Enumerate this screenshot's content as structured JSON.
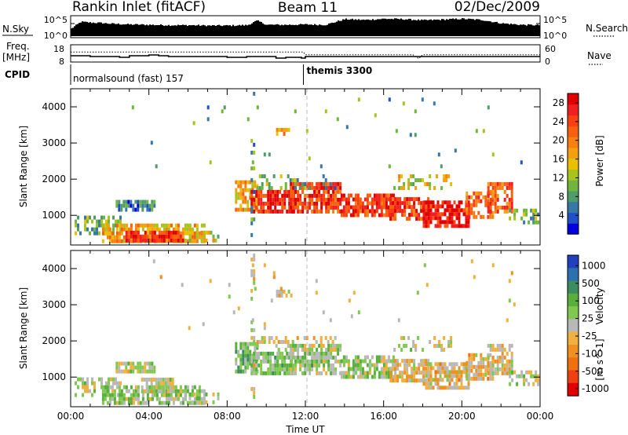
{
  "header": {
    "station": "Rankin Inlet (fitACF)",
    "beam": "Beam 11",
    "date": "02/Dec/2009"
  },
  "chart_data": [
    {
      "name": "noise-strip",
      "type": "line",
      "left_label": "N.Sky",
      "right_label": "N.Search",
      "left_ticks": [
        "10^5",
        "10^0"
      ],
      "right_ticks": [
        "10^5",
        "10^0"
      ],
      "series": [
        {
          "name": "N.Sky",
          "x_hours": [
            0,
            0.5,
            1.0,
            1.5,
            2.0,
            3.0,
            4.0,
            5.0,
            6.0,
            7.0,
            8.0,
            9.0,
            9.5,
            10.0,
            11.0,
            12.0,
            13.0,
            14.0,
            15.0,
            16.0,
            17.0,
            18.0,
            19.0,
            20.0,
            21.0,
            22.0,
            23.0,
            24.0
          ],
          "log10_noise": [
            2.0,
            3.8,
            3.6,
            3.5,
            3.3,
            3.1,
            3.0,
            2.9,
            2.9,
            2.8,
            2.8,
            2.9,
            4.1,
            3.0,
            3.0,
            3.1,
            3.0,
            4.5,
            4.3,
            4.6,
            4.5,
            4.2,
            4.4,
            4.6,
            4.3,
            3.4,
            3.0,
            2.9
          ]
        }
      ]
    },
    {
      "name": "frequency-strip",
      "type": "line",
      "left_label": "Freq.",
      "left_unit": "[MHz]",
      "right_label": "Nave",
      "left_ticks": [
        18,
        8
      ],
      "right_ticks": [
        60,
        0
      ],
      "series": [
        {
          "name": "Freq.",
          "x_hours": [
            0,
            1.0,
            1.5,
            2.5,
            3.0,
            4.0,
            4.5,
            5.0,
            8.0,
            9.0,
            10.0,
            10.5,
            11.0,
            11.8,
            12.0,
            18.0,
            24.0
          ],
          "mhz": [
            11.5,
            11.0,
            11.0,
            10.5,
            11.5,
            12.0,
            11.5,
            11.0,
            10.5,
            11.0,
            11.0,
            10.0,
            10.5,
            10.0,
            11.0,
            11.0,
            11.0
          ]
        },
        {
          "name": "Nave",
          "x_hours": [
            0,
            11.9,
            12.0,
            17.5,
            17.8,
            18.0,
            24.0
          ],
          "count": [
            35,
            35,
            25,
            25,
            10,
            25,
            25
          ]
        }
      ]
    },
    {
      "name": "cpid-strip",
      "type": "timeline",
      "label": "CPID",
      "segments": [
        {
          "start_hour": 0,
          "end_hour": 11.9,
          "text": "normalsound (fast) 157"
        },
        {
          "start_hour": 11.9,
          "end_hour": 24,
          "text": "themis 3300"
        }
      ]
    },
    {
      "name": "power-panel",
      "type": "heatmap",
      "ylabel": "Slant Range [km]",
      "yticks": [
        1000,
        2000,
        3000,
        4000
      ],
      "ylim": [
        180,
        4500
      ],
      "xlim_hours": [
        0,
        24
      ],
      "colorbar": {
        "label": "Power [dB]",
        "tick_labels": [
          "4",
          "8",
          "12",
          "16",
          "20",
          "24",
          "28"
        ],
        "tick_values": [
          4,
          8,
          12,
          16,
          20,
          24,
          28
        ],
        "range": [
          0,
          30
        ],
        "colors": [
          "#0000e0",
          "#2050c8",
          "#3878a8",
          "#4f9c6a",
          "#70b63c",
          "#a8c41c",
          "#e8c000",
          "#f3a010",
          "#f78010",
          "#f86010",
          "#f84010",
          "#f02020",
          "#e00000"
        ]
      },
      "regions": [
        {
          "t0": 0.2,
          "t1": 2.6,
          "r0": 450,
          "r1": 950,
          "v": 10,
          "d": 0.55
        },
        {
          "t0": 2.3,
          "t1": 4.3,
          "r0": 1100,
          "r1": 1320,
          "v": 6,
          "d": 0.75
        },
        {
          "t0": 1.6,
          "t1": 6.8,
          "r0": 230,
          "r1": 700,
          "v": 17,
          "d": 0.8
        },
        {
          "t0": 2.8,
          "t1": 5.8,
          "r0": 250,
          "r1": 550,
          "v": 26,
          "d": 0.85
        },
        {
          "t0": 5.8,
          "t1": 7.6,
          "r0": 250,
          "r1": 480,
          "v": 14,
          "d": 0.45
        },
        {
          "t0": 8.4,
          "t1": 9.6,
          "r0": 1100,
          "r1": 1900,
          "v": 18,
          "d": 0.75
        },
        {
          "t0": 9.2,
          "t1": 11.4,
          "r0": 1050,
          "r1": 1650,
          "v": 26,
          "d": 0.8
        },
        {
          "t0": 11.2,
          "t1": 13.8,
          "r0": 1050,
          "r1": 1850,
          "v": 25,
          "d": 0.8
        },
        {
          "t0": 13.8,
          "t1": 16.5,
          "r0": 950,
          "r1": 1600,
          "v": 25,
          "d": 0.8
        },
        {
          "t0": 16.3,
          "t1": 18.3,
          "r0": 850,
          "r1": 1500,
          "v": 24,
          "d": 0.75
        },
        {
          "t0": 18.0,
          "t1": 20.3,
          "r0": 650,
          "r1": 1350,
          "v": 27,
          "d": 0.8
        },
        {
          "t0": 20.2,
          "t1": 21.6,
          "r0": 900,
          "r1": 1600,
          "v": 22,
          "d": 0.7
        },
        {
          "t0": 21.3,
          "t1": 22.6,
          "r0": 1050,
          "r1": 1850,
          "v": 22,
          "d": 0.75
        },
        {
          "t0": 22.4,
          "t1": 23.9,
          "r0": 750,
          "r1": 1100,
          "v": 10,
          "d": 0.5
        },
        {
          "t0": 9.5,
          "t1": 13.5,
          "r0": 1700,
          "r1": 2100,
          "v": 9,
          "d": 0.3
        },
        {
          "t0": 16.5,
          "t1": 19.5,
          "r0": 1700,
          "r1": 2100,
          "v": 14,
          "d": 0.25
        },
        {
          "t0": 10.5,
          "t1": 11.3,
          "r0": 3200,
          "r1": 3400,
          "v": 18,
          "d": 0.5
        },
        {
          "t0": 9.2,
          "t1": 9.35,
          "r0": 400,
          "r1": 4400,
          "v": 8,
          "d": 0.2
        },
        {
          "t0": 3.0,
          "t1": 23.0,
          "r0": 2300,
          "r1": 4200,
          "v": 8,
          "d": 0.01
        }
      ]
    },
    {
      "name": "velocity-panel",
      "type": "heatmap",
      "ylabel": "Slant Range [km]",
      "yticks": [
        1000,
        2000,
        3000,
        4000
      ],
      "ylim": [
        180,
        4500
      ],
      "xlim_hours": [
        0,
        24
      ],
      "xticks": [
        "00:00",
        "04:00",
        "08:00",
        "12:00",
        "16:00",
        "20:00",
        "00:00"
      ],
      "xtick_hours": [
        0,
        4,
        8,
        12,
        16,
        20,
        24
      ],
      "xlabel": "Time UT",
      "colorbar": {
        "label": "Velocity",
        "unit": "[m s^-1]",
        "tick_labels": [
          "1000",
          "500",
          "100",
          "25",
          "-25",
          "-100",
          "-500",
          "-1000"
        ],
        "tick_values": [
          1000,
          500,
          100,
          25,
          -25,
          -100,
          -500,
          -1000
        ],
        "range": [
          -1200,
          1200
        ],
        "colors": [
          "#2040c0",
          "#2c70b0",
          "#3b8c60",
          "#58b03c",
          "#80c850",
          "#b8b8b8",
          "#f0b040",
          "#f09020",
          "#f07010",
          "#f04010",
          "#e00000"
        ]
      },
      "regions": [
        {
          "t0": 0.2,
          "t1": 2.6,
          "r0": 450,
          "r1": 950,
          "v": 80,
          "d": 0.5
        },
        {
          "t0": 2.3,
          "t1": 4.3,
          "r0": 1100,
          "r1": 1320,
          "v": 0,
          "d": 0.75
        },
        {
          "t0": 1.6,
          "t1": 6.8,
          "r0": 230,
          "r1": 700,
          "v": 150,
          "d": 0.7
        },
        {
          "t0": 3.6,
          "t1": 5.2,
          "r0": 550,
          "r1": 900,
          "v": 0,
          "d": 0.85
        },
        {
          "t0": 5.8,
          "t1": 7.6,
          "r0": 250,
          "r1": 480,
          "v": 60,
          "d": 0.4
        },
        {
          "t0": 8.4,
          "t1": 9.6,
          "r0": 1100,
          "r1": 1900,
          "v": 300,
          "d": 0.75
        },
        {
          "t0": 9.2,
          "t1": 11.4,
          "r0": 1050,
          "r1": 1650,
          "v": 250,
          "d": 0.8
        },
        {
          "t0": 11.2,
          "t1": 13.8,
          "r0": 1050,
          "r1": 1850,
          "v": 200,
          "d": 0.75
        },
        {
          "t0": 13.8,
          "t1": 16.5,
          "r0": 950,
          "r1": 1600,
          "v": 120,
          "d": 0.75
        },
        {
          "t0": 16.3,
          "t1": 18.3,
          "r0": 850,
          "r1": 1500,
          "v": -150,
          "d": 0.7
        },
        {
          "t0": 18.0,
          "t1": 20.3,
          "r0": 650,
          "r1": 1350,
          "v": -200,
          "d": 0.8
        },
        {
          "t0": 20.2,
          "t1": 21.6,
          "r0": 900,
          "r1": 1600,
          "v": -200,
          "d": 0.7
        },
        {
          "t0": 21.3,
          "t1": 22.6,
          "r0": 1050,
          "r1": 1850,
          "v": -150,
          "d": 0.75
        },
        {
          "t0": 22.4,
          "t1": 23.9,
          "r0": 750,
          "r1": 1100,
          "v": 100,
          "d": 0.5
        },
        {
          "t0": 9.5,
          "t1": 13.5,
          "r0": 1700,
          "r1": 2100,
          "v": -80,
          "d": 0.3
        },
        {
          "t0": 16.5,
          "t1": 19.5,
          "r0": 1700,
          "r1": 2100,
          "v": 0,
          "d": 0.3
        },
        {
          "t0": 10.5,
          "t1": 11.3,
          "r0": 3200,
          "r1": 3400,
          "v": -150,
          "d": 0.5
        },
        {
          "t0": 9.2,
          "t1": 9.35,
          "r0": 400,
          "r1": 4400,
          "v": -100,
          "d": 0.2
        },
        {
          "t0": 3.0,
          "t1": 23.0,
          "r0": 2300,
          "r1": 4200,
          "v": -100,
          "d": 0.01
        }
      ]
    }
  ]
}
